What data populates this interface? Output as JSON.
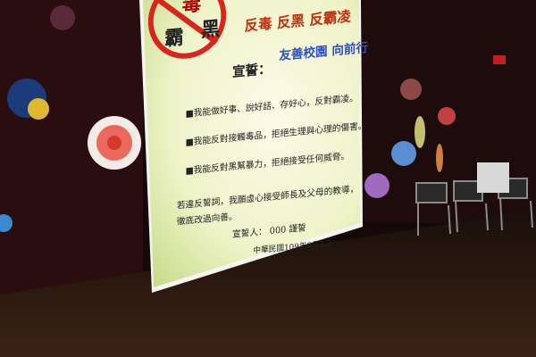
{
  "screen": {
    "logo": [
      "毒",
      "霸",
      "黑"
    ],
    "headline": "反毒 反黑 反霸凌",
    "subheadline": "友善校園 向前行",
    "oath_title": "宣誓：",
    "pledges": [
      "■我能做好事、說好話、存好心，反對霸凌。",
      "■我能反對接觸毒品，拒絕生理與心理的傷害。",
      "■我能反對黑幫暴力，拒絕接受任何威脅。"
    ],
    "closing": [
      "若違反誓詞，我願虛心接受師長及父母的教導，",
      "徹底改過向善。"
    ],
    "signer": "宣誓人： 000 謹誓",
    "date": "中華民國109年9月4日"
  }
}
